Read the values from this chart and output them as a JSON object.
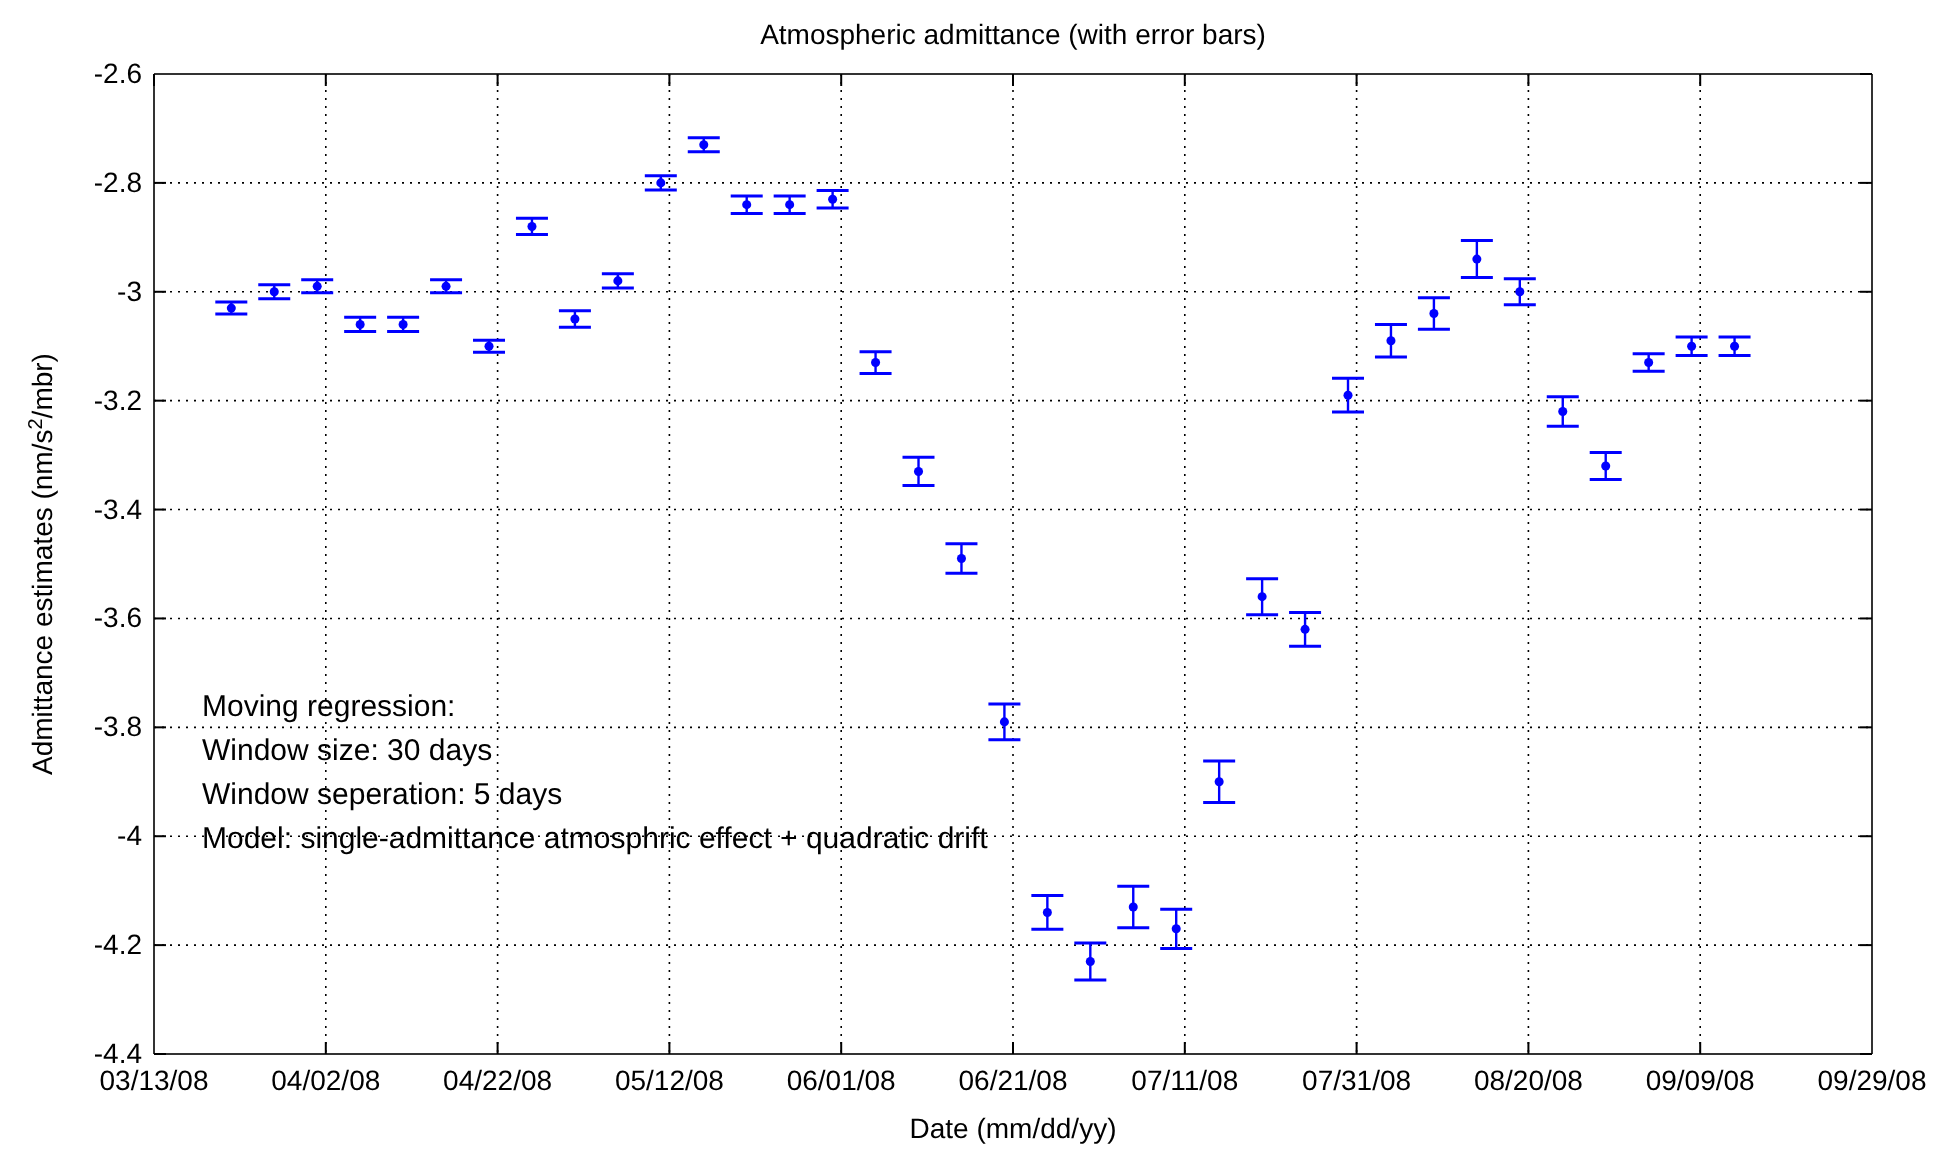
{
  "chart_data": {
    "type": "scatter",
    "title": "Atmospheric admittance (with error bars)",
    "xlabel": "Date (mm/dd/yy)",
    "ylabel": "Admittance estimates (nm/s$^{2}$/mbr)",
    "annotations": [
      "Moving regression:",
      "Window size: 30 days",
      "Window seperation: 5 days",
      "Model: single-admittance atmosphric effect + quadratic drift"
    ],
    "x": [
      "2008-03-22",
      "2008-03-27",
      "2008-04-01",
      "2008-04-06",
      "2008-04-11",
      "2008-04-16",
      "2008-04-21",
      "2008-04-26",
      "2008-05-01",
      "2008-05-06",
      "2008-05-11",
      "2008-05-16",
      "2008-05-21",
      "2008-05-26",
      "2008-05-31",
      "2008-06-05",
      "2008-06-10",
      "2008-06-15",
      "2008-06-20",
      "2008-06-25",
      "2008-06-30",
      "2008-07-05",
      "2008-07-10",
      "2008-07-15",
      "2008-07-20",
      "2008-07-25",
      "2008-07-30",
      "2008-08-04",
      "2008-08-09",
      "2008-08-14",
      "2008-08-19",
      "2008-08-24",
      "2008-08-29",
      "2008-09-03",
      "2008-09-08",
      "2008-09-13"
    ],
    "series": [
      {
        "color": "#0000ff",
        "values": [
          -3.03,
          -3.0,
          -2.99,
          -3.06,
          -3.06,
          -2.99,
          -3.1,
          -2.88,
          -3.05,
          -2.98,
          -2.8,
          -2.73,
          -2.84,
          -2.84,
          -2.83,
          -3.13,
          -3.33,
          -3.49,
          -3.79,
          -4.14,
          -4.23,
          -4.13,
          -4.17,
          -3.9,
          -3.56,
          -3.62,
          -3.19,
          -3.09,
          -3.04,
          -2.94,
          -3.0,
          -3.22,
          -3.32,
          -3.13,
          -3.1,
          -3.1
        ],
        "errors": [
          0.011,
          0.013,
          0.012,
          0.013,
          0.013,
          0.012,
          0.011,
          0.015,
          0.015,
          0.013,
          0.013,
          0.013,
          0.016,
          0.016,
          0.016,
          0.02,
          0.026,
          0.027,
          0.033,
          0.031,
          0.034,
          0.038,
          0.036,
          0.038,
          0.033,
          0.031,
          0.031,
          0.03,
          0.029,
          0.034,
          0.024,
          0.027,
          0.025,
          0.016,
          0.017,
          0.017
        ]
      }
    ],
    "marker": "circle",
    "xlim": [
      "2008-03-13",
      "2008-09-29"
    ],
    "xticks": [
      {
        "value": "2008-03-13",
        "label": "03/13/08"
      },
      {
        "value": "2008-04-02",
        "label": "04/02/08"
      },
      {
        "value": "2008-04-22",
        "label": "04/22/08"
      },
      {
        "value": "2008-05-12",
        "label": "05/12/08"
      },
      {
        "value": "2008-06-01",
        "label": "06/01/08"
      },
      {
        "value": "2008-06-21",
        "label": "06/21/08"
      },
      {
        "value": "2008-07-11",
        "label": "07/11/08"
      },
      {
        "value": "2008-07-31",
        "label": "07/31/08"
      },
      {
        "value": "2008-08-20",
        "label": "08/20/08"
      },
      {
        "value": "2008-09-09",
        "label": "09/09/08"
      },
      {
        "value": "2008-09-29",
        "label": "09/29/08"
      }
    ],
    "ylim": [
      -4.4,
      -2.6
    ],
    "yticks": [
      -4.4,
      -4.2,
      -4,
      -3.8,
      -3.6,
      -3.4,
      -3.2,
      -3,
      -2.8,
      -2.6
    ],
    "grid": true
  }
}
